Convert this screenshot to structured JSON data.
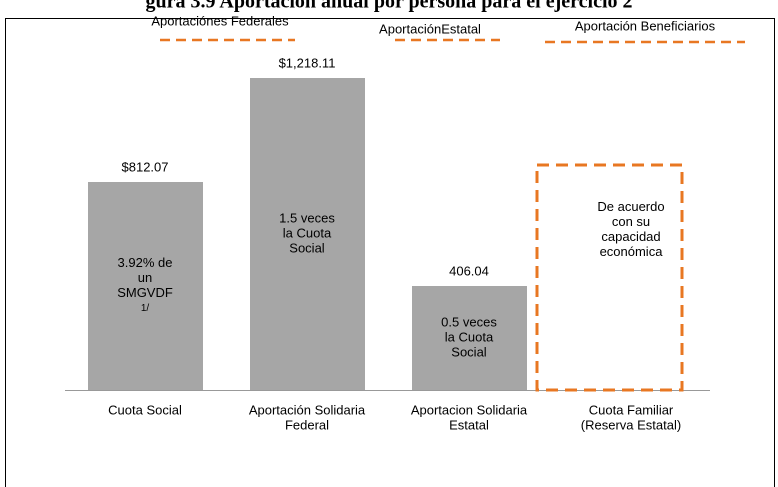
{
  "chart_data": {
    "type": "bar",
    "title": "gura 3.9 Aportación anual por persona para el ejercicio 2",
    "headers": [
      "Aportaciónes Federales",
      "AportaciónEstatal",
      "Aportación Beneficiarios"
    ],
    "header_color": "#e87722",
    "categories": [
      [
        "Cuota Social"
      ],
      [
        "Aportación Solidaria",
        "Federal"
      ],
      [
        "Aportacion Solidaria",
        "Estatal"
      ],
      [
        "Cuota Familiar",
        "(Reserva Estatal)"
      ]
    ],
    "values": [
      812.07,
      1218.11,
      406.04,
      null
    ],
    "value_labels": [
      "$812.07",
      "$1,218.11",
      "406.04",
      null
    ],
    "notes": [
      [
        "3.92% de",
        "un",
        "SMGVDF",
        "1/"
      ],
      [
        "1.5 veces",
        "la Cuota",
        "Social"
      ],
      [
        "0.5 veces",
        "la Cuota",
        "Social"
      ],
      [
        "De acuerdo",
        "con su",
        "capacidad",
        "económica"
      ]
    ],
    "color": "#a6a6a6"
  }
}
